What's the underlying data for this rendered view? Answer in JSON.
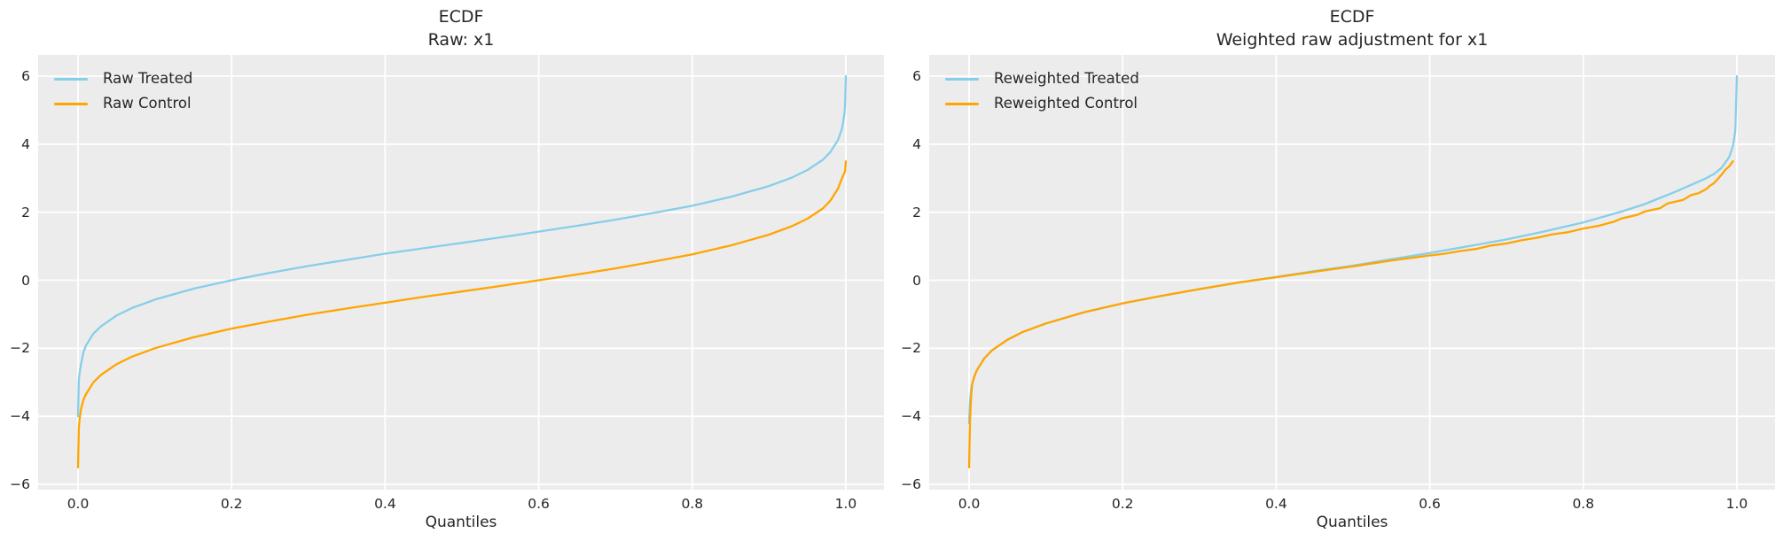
{
  "figure": {
    "background": "#ffffff",
    "text_color": "#262626",
    "plot_background": "#ececec",
    "grid_color": "#ffffff"
  },
  "chart_data": [
    {
      "type": "line",
      "title": "ECDF\nRaw: x1",
      "xlabel": "Quantiles",
      "grid": true,
      "legend_position": "upper-left",
      "xlim": [
        -0.052,
        1.0497
      ],
      "ylim": [
        -6.156,
        6.625
      ],
      "xticks": {
        "values": [
          0.0,
          0.2,
          0.4,
          0.6,
          0.8,
          1.0
        ],
        "labels": [
          "0.0",
          "0.2",
          "0.4",
          "0.6",
          "0.8",
          "1.0"
        ]
      },
      "yticks": {
        "values": [
          -6,
          -4,
          -2,
          0,
          2,
          4,
          6
        ],
        "labels": [
          "−6",
          "−4",
          "−2",
          "0",
          "2",
          "4",
          "6"
        ]
      },
      "series": [
        {
          "name": "Raw Treated",
          "color": "#87ceeb",
          "points": [
            [
              0.0,
              -4.0
            ],
            [
              0.001,
              -2.95
            ],
            [
              0.002,
              -2.72
            ],
            [
              0.004,
              -2.45
            ],
            [
              0.007,
              -2.12
            ],
            [
              0.01,
              -1.93
            ],
            [
              0.02,
              -1.57
            ],
            [
              0.03,
              -1.35
            ],
            [
              0.05,
              -1.04
            ],
            [
              0.07,
              -0.82
            ],
            [
              0.1,
              -0.57
            ],
            [
              0.15,
              -0.25
            ],
            [
              0.2,
              0.0
            ],
            [
              0.25,
              0.22
            ],
            [
              0.3,
              0.42
            ],
            [
              0.35,
              0.6
            ],
            [
              0.4,
              0.78
            ],
            [
              0.45,
              0.94
            ],
            [
              0.5,
              1.1
            ],
            [
              0.55,
              1.26
            ],
            [
              0.6,
              1.43
            ],
            [
              0.65,
              1.6
            ],
            [
              0.7,
              1.78
            ],
            [
              0.75,
              1.98
            ],
            [
              0.8,
              2.19
            ],
            [
              0.85,
              2.45
            ],
            [
              0.9,
              2.77
            ],
            [
              0.93,
              3.02
            ],
            [
              0.95,
              3.24
            ],
            [
              0.97,
              3.54
            ],
            [
              0.98,
              3.77
            ],
            [
              0.99,
              4.13
            ],
            [
              0.995,
              4.45
            ],
            [
              0.998,
              4.85
            ],
            [
              0.999,
              5.12
            ],
            [
              1.0,
              6.0
            ]
          ]
        },
        {
          "name": "Raw Control",
          "color": "#ffa500",
          "points": [
            [
              0.0,
              -5.5
            ],
            [
              0.001,
              -4.35
            ],
            [
              0.002,
              -4.07
            ],
            [
              0.004,
              -3.77
            ],
            [
              0.007,
              -3.52
            ],
            [
              0.01,
              -3.36
            ],
            [
              0.02,
              -3.0
            ],
            [
              0.03,
              -2.78
            ],
            [
              0.05,
              -2.47
            ],
            [
              0.07,
              -2.25
            ],
            [
              0.1,
              -2.0
            ],
            [
              0.15,
              -1.68
            ],
            [
              0.2,
              -1.42
            ],
            [
              0.25,
              -1.21
            ],
            [
              0.3,
              -1.01
            ],
            [
              0.35,
              -0.83
            ],
            [
              0.4,
              -0.66
            ],
            [
              0.45,
              -0.49
            ],
            [
              0.5,
              -0.33
            ],
            [
              0.55,
              -0.17
            ],
            [
              0.6,
              0.0
            ],
            [
              0.65,
              0.17
            ],
            [
              0.7,
              0.35
            ],
            [
              0.75,
              0.55
            ],
            [
              0.8,
              0.76
            ],
            [
              0.85,
              1.02
            ],
            [
              0.9,
              1.34
            ],
            [
              0.93,
              1.59
            ],
            [
              0.95,
              1.81
            ],
            [
              0.97,
              2.11
            ],
            [
              0.98,
              2.34
            ],
            [
              0.99,
              2.7
            ],
            [
              0.995,
              3.0
            ],
            [
              0.999,
              3.2
            ],
            [
              1.0,
              3.5
            ]
          ]
        }
      ]
    },
    {
      "type": "line",
      "title": "ECDF\nWeighted raw adjustment for x1",
      "xlabel": "Quantiles",
      "grid": true,
      "legend_position": "upper-left",
      "xlim": [
        -0.052,
        1.0497
      ],
      "ylim": [
        -6.156,
        6.625
      ],
      "xticks": {
        "values": [
          0.0,
          0.2,
          0.4,
          0.6,
          0.8,
          1.0
        ],
        "labels": [
          "0.0",
          "0.2",
          "0.4",
          "0.6",
          "0.8",
          "1.0"
        ]
      },
      "yticks": {
        "values": [
          -6,
          -4,
          -2,
          0,
          2,
          4,
          6
        ],
        "labels": [
          "−6",
          "−4",
          "−2",
          "0",
          "2",
          "4",
          "6"
        ]
      },
      "series": [
        {
          "name": "Reweighted Treated",
          "color": "#87ceeb",
          "points": [
            [
              0.0,
              -4.2
            ],
            [
              0.001,
              -3.62
            ],
            [
              0.002,
              -3.33
            ],
            [
              0.003,
              -3.15
            ],
            [
              0.004,
              -3.05
            ],
            [
              0.007,
              -2.82
            ],
            [
              0.01,
              -2.65
            ],
            [
              0.02,
              -2.29
            ],
            [
              0.03,
              -2.06
            ],
            [
              0.05,
              -1.75
            ],
            [
              0.07,
              -1.52
            ],
            [
              0.1,
              -1.27
            ],
            [
              0.15,
              -0.94
            ],
            [
              0.2,
              -0.68
            ],
            [
              0.25,
              -0.46
            ],
            [
              0.3,
              -0.26
            ],
            [
              0.35,
              -0.07
            ],
            [
              0.4,
              0.1
            ],
            [
              0.45,
              0.27
            ],
            [
              0.5,
              0.43
            ],
            [
              0.55,
              0.62
            ],
            [
              0.6,
              0.8
            ],
            [
              0.65,
              1.0
            ],
            [
              0.7,
              1.2
            ],
            [
              0.75,
              1.44
            ],
            [
              0.8,
              1.7
            ],
            [
              0.85,
              2.02
            ],
            [
              0.88,
              2.24
            ],
            [
              0.9,
              2.42
            ],
            [
              0.92,
              2.6
            ],
            [
              0.94,
              2.8
            ],
            [
              0.96,
              3.0
            ],
            [
              0.97,
              3.12
            ],
            [
              0.98,
              3.3
            ],
            [
              0.99,
              3.62
            ],
            [
              0.995,
              3.95
            ],
            [
              0.998,
              4.4
            ],
            [
              1.0,
              6.0
            ]
          ]
        },
        {
          "name": "Reweighted Control",
          "color": "#ffa500",
          "points": [
            [
              0.0,
              -5.5
            ],
            [
              0.001,
              -4.3
            ],
            [
              0.002,
              -3.7
            ],
            [
              0.003,
              -3.3
            ],
            [
              0.004,
              -3.05
            ],
            [
              0.007,
              -2.82
            ],
            [
              0.01,
              -2.65
            ],
            [
              0.02,
              -2.29
            ],
            [
              0.03,
              -2.06
            ],
            [
              0.05,
              -1.75
            ],
            [
              0.07,
              -1.52
            ],
            [
              0.1,
              -1.27
            ],
            [
              0.15,
              -0.94
            ],
            [
              0.2,
              -0.68
            ],
            [
              0.25,
              -0.46
            ],
            [
              0.3,
              -0.26
            ],
            [
              0.35,
              -0.07
            ],
            [
              0.4,
              0.09
            ],
            [
              0.45,
              0.25
            ],
            [
              0.5,
              0.41
            ],
            [
              0.55,
              0.58
            ],
            [
              0.6,
              0.73
            ],
            [
              0.62,
              0.78
            ],
            [
              0.64,
              0.86
            ],
            [
              0.66,
              0.92
            ],
            [
              0.68,
              1.02
            ],
            [
              0.7,
              1.08
            ],
            [
              0.72,
              1.18
            ],
            [
              0.74,
              1.25
            ],
            [
              0.76,
              1.35
            ],
            [
              0.78,
              1.41
            ],
            [
              0.8,
              1.52
            ],
            [
              0.82,
              1.6
            ],
            [
              0.84,
              1.72
            ],
            [
              0.85,
              1.82
            ],
            [
              0.87,
              1.92
            ],
            [
              0.88,
              2.02
            ],
            [
              0.9,
              2.12
            ],
            [
              0.91,
              2.26
            ],
            [
              0.93,
              2.36
            ],
            [
              0.94,
              2.5
            ],
            [
              0.95,
              2.56
            ],
            [
              0.96,
              2.68
            ],
            [
              0.965,
              2.78
            ],
            [
              0.97,
              2.85
            ],
            [
              0.975,
              2.97
            ],
            [
              0.98,
              3.1
            ],
            [
              0.985,
              3.25
            ],
            [
              0.99,
              3.35
            ],
            [
              0.995,
              3.5
            ]
          ]
        }
      ]
    }
  ]
}
